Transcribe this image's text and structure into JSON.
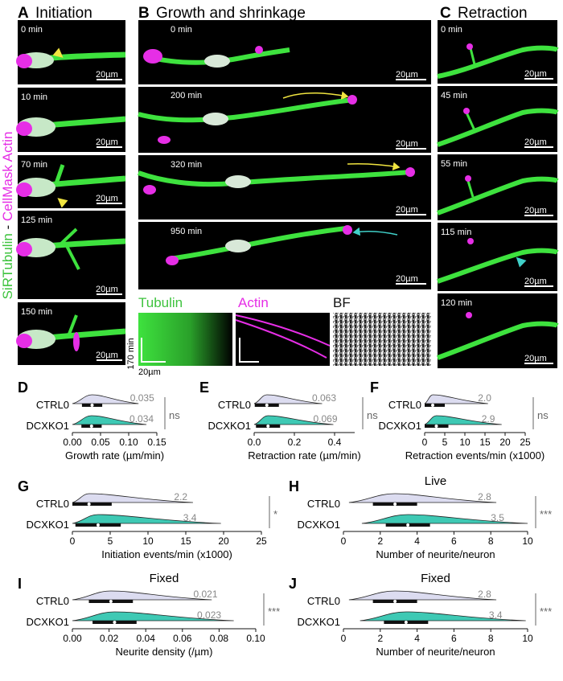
{
  "panels": {
    "A": {
      "letter": "A",
      "title": "Initiation",
      "times": [
        "0 min",
        "10 min",
        "70 min",
        "125 min",
        "150 min"
      ]
    },
    "B": {
      "letter": "B",
      "title": "Growth and shrinkage",
      "times": [
        "0 min",
        "200 min",
        "320 min",
        "950 min"
      ]
    },
    "C": {
      "letter": "C",
      "title": "Retraction",
      "times": [
        "0 min",
        "45 min",
        "55 min",
        "115 min",
        "120 min"
      ]
    }
  },
  "side_label": {
    "part1": "SiRTubulin",
    "sep": " - ",
    "part2": "CellMask Actin"
  },
  "scalebar": "20µm",
  "kymographs": {
    "labels": [
      "Tubulin",
      "Actin",
      "BF"
    ],
    "time_scale": "170 min",
    "space_scale": "20µm"
  },
  "colors": {
    "tubulin": "#3ee23e",
    "actin": "#e62ee6",
    "ctrl_violin": "#dcdcf0",
    "ko_violin": "#3ec9b4",
    "yellow_arrow": "#f0e440",
    "cyan_arrow": "#40d0c8"
  },
  "chart_data": [
    {
      "letter": "D",
      "type": "violin",
      "categories": [
        "CTRL0",
        "DCXKO1"
      ],
      "medians": [
        "0.035",
        "0.034"
      ],
      "median_values": [
        0.035,
        0.034
      ],
      "xlabel": "Growth rate (µm/min)",
      "xlim": [
        0,
        0.15
      ],
      "ticks": [
        0,
        0.05,
        0.1,
        0.15
      ],
      "tick_labels": [
        "0.00",
        "0.05",
        "0.10",
        "0.15"
      ],
      "sig": "ns"
    },
    {
      "letter": "E",
      "type": "violin",
      "categories": [
        "CTRL0",
        "DCXKO1"
      ],
      "medians": [
        "0.063",
        "0.069"
      ],
      "median_values": [
        0.063,
        0.069
      ],
      "xlabel": "Retraction rate (µm/min)",
      "xlim": [
        0,
        0.5
      ],
      "ticks": [
        0,
        0.2,
        0.4
      ],
      "tick_labels": [
        "0.0",
        "0.2",
        "0.4"
      ],
      "sig": "ns"
    },
    {
      "letter": "F",
      "type": "violin",
      "categories": [
        "CTRL0",
        "DCXKO1"
      ],
      "medians": [
        "2.0",
        "2.9"
      ],
      "median_values": [
        2.0,
        2.9
      ],
      "xlabel": "Retraction events/min (x1000)",
      "xlim": [
        0,
        25
      ],
      "ticks": [
        0,
        5,
        10,
        15,
        20,
        25
      ],
      "tick_labels": [
        "0",
        "5",
        "10",
        "15",
        "20",
        "25"
      ],
      "sig": "ns"
    },
    {
      "letter": "G",
      "type": "violin",
      "categories": [
        "CTRL0",
        "DCXKO1"
      ],
      "medians": [
        "2.2",
        "3.4"
      ],
      "median_values": [
        2.2,
        3.4
      ],
      "xlabel": "Initiation events/min (x1000)",
      "xlim": [
        0,
        25
      ],
      "ticks": [
        0,
        5,
        10,
        15,
        20,
        25
      ],
      "tick_labels": [
        "0",
        "5",
        "10",
        "15",
        "20",
        "25"
      ],
      "sig": "*"
    },
    {
      "letter": "H",
      "type": "violin",
      "title": "Live",
      "categories": [
        "CTRL0",
        "DCXKO1"
      ],
      "medians": [
        "2.8",
        "3.5"
      ],
      "median_values": [
        2.8,
        3.5
      ],
      "xlabel": "Number of neurite/neuron",
      "xlim": [
        0,
        10
      ],
      "ticks": [
        0,
        2,
        4,
        6,
        8,
        10
      ],
      "tick_labels": [
        "0",
        "2",
        "4",
        "6",
        "8",
        "10"
      ],
      "sig": "***"
    },
    {
      "letter": "I",
      "type": "violin",
      "title": "Fixed",
      "categories": [
        "CTRL0",
        "DCXKO1"
      ],
      "medians": [
        "0.021",
        "0.023"
      ],
      "median_values": [
        0.021,
        0.023
      ],
      "xlabel": "Neurite density (/µm)",
      "xlim": [
        0,
        0.1
      ],
      "ticks": [
        0,
        0.02,
        0.04,
        0.06,
        0.08,
        0.1
      ],
      "tick_labels": [
        "0.00",
        "0.02",
        "0.04",
        "0.06",
        "0.08",
        "0.10"
      ],
      "sig": "***"
    },
    {
      "letter": "J",
      "type": "violin",
      "title": "Fixed",
      "categories": [
        "CTRL0",
        "DCXKO1"
      ],
      "medians": [
        "2.8",
        "3.4"
      ],
      "median_values": [
        2.8,
        3.4
      ],
      "xlabel": "Number of neurite/neuron",
      "xlim": [
        0,
        10
      ],
      "ticks": [
        0,
        2,
        4,
        6,
        8,
        10
      ],
      "tick_labels": [
        "0",
        "2",
        "4",
        "6",
        "8",
        "10"
      ],
      "sig": "***"
    }
  ]
}
